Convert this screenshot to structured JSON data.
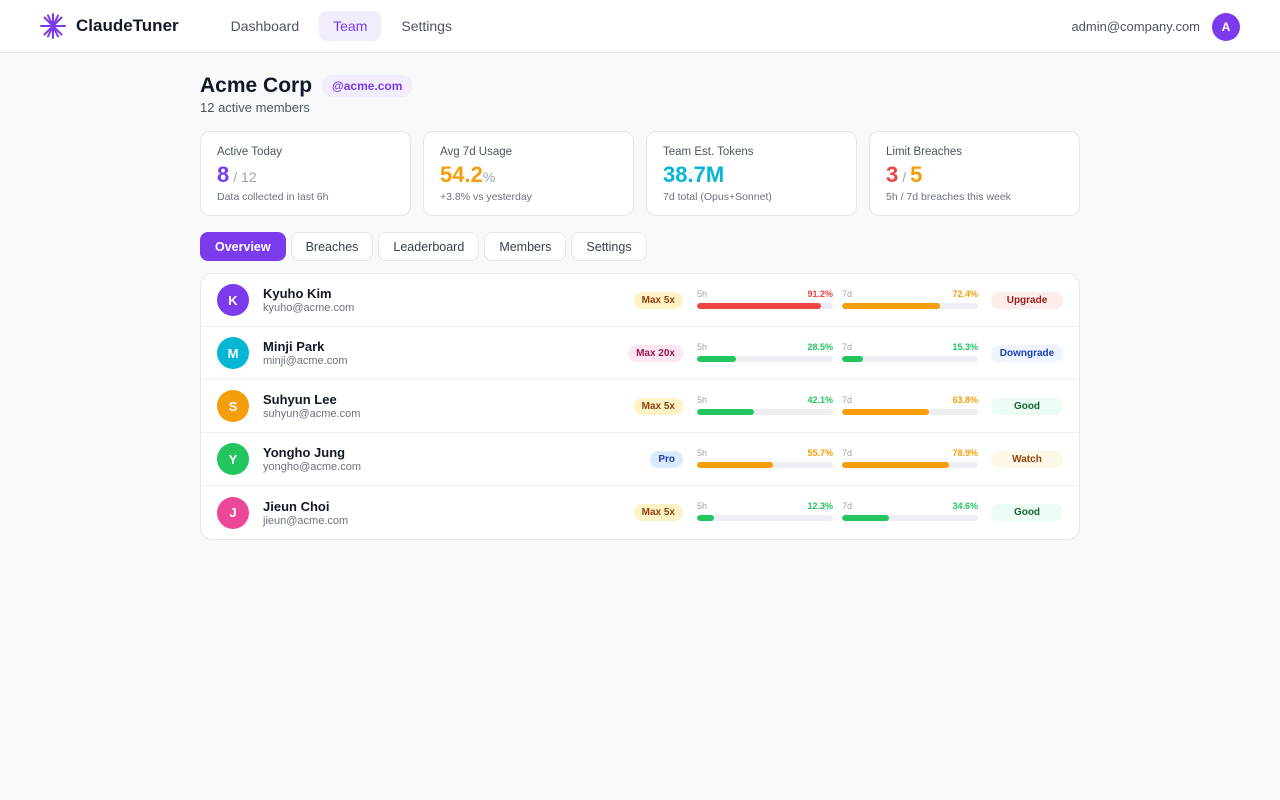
{
  "app": {
    "name": "ClaudeTuner"
  },
  "nav": {
    "tabs": [
      "Dashboard",
      "Team",
      "Settings"
    ],
    "active": 1
  },
  "user": {
    "email": "admin@company.com",
    "initial": "A"
  },
  "org": {
    "name": "Acme Corp",
    "domain": "@acme.com",
    "members_label": "12 active members"
  },
  "stats": [
    {
      "label": "Active Today",
      "value": "8",
      "value_color": "#7c3aed",
      "suffix": "/ 12",
      "note": "Data collected in last 6h"
    },
    {
      "label": "Avg 7d Usage",
      "value": "54.2",
      "value_color": "#f59e0b",
      "suffix": "%",
      "note": "+3.8% vs yesterday"
    },
    {
      "label": "Team Est. Tokens",
      "value": "38.7M",
      "value_color": "#06b6d4",
      "suffix": "",
      "note": "7d total (Opus+Sonnet)"
    },
    {
      "label": "Limit Breaches",
      "value": "3",
      "value_color": "#ef4444",
      "sep": "/",
      "value2": "5",
      "value2_color": "#f59e0b",
      "note": "5h / 7d breaches this week"
    }
  ],
  "tabs": [
    "Overview",
    "Breaches",
    "Leaderboard",
    "Members",
    "Settings"
  ],
  "active_tab": 0,
  "labels": {
    "h5": "5h",
    "d7": "7d"
  },
  "colors": {
    "accent": "#7c3aed",
    "red": "#ef4444",
    "orange": "#f59e0b",
    "green": "#22c55e"
  },
  "members": [
    {
      "initial": "K",
      "avatar_color": "#7c3aed",
      "name": "Kyuho Kim",
      "email": "kyuho@acme.com",
      "plan": "Max 5x",
      "usage_5h": 91.2,
      "usage_5h_label": "91.2%",
      "usage_7d": 72.4,
      "usage_7d_label": "72.4%",
      "status": "Upgrade"
    },
    {
      "initial": "M",
      "avatar_color": "#06b6d4",
      "name": "Minji Park",
      "email": "minji@acme.com",
      "plan": "Max 20x",
      "usage_5h": 28.5,
      "usage_5h_label": "28.5%",
      "usage_7d": 15.3,
      "usage_7d_label": "15.3%",
      "status": "Downgrade"
    },
    {
      "initial": "S",
      "avatar_color": "#f59e0b",
      "name": "Suhyun Lee",
      "email": "suhyun@acme.com",
      "plan": "Max 5x",
      "usage_5h": 42.1,
      "usage_5h_label": "42.1%",
      "usage_7d": 63.8,
      "usage_7d_label": "63.8%",
      "status": "Good"
    },
    {
      "initial": "Y",
      "avatar_color": "#22c55e",
      "name": "Yongho Jung",
      "email": "yongho@acme.com",
      "plan": "Pro",
      "usage_5h": 55.7,
      "usage_5h_label": "55.7%",
      "usage_7d": 78.9,
      "usage_7d_label": "78.9%",
      "status": "Watch"
    },
    {
      "initial": "J",
      "avatar_color": "#ec4899",
      "name": "Jieun Choi",
      "email": "jieun@acme.com",
      "plan": "Max 5x",
      "usage_5h": 12.3,
      "usage_5h_label": "12.3%",
      "usage_7d": 34.6,
      "usage_7d_label": "34.6%",
      "status": "Good"
    }
  ]
}
